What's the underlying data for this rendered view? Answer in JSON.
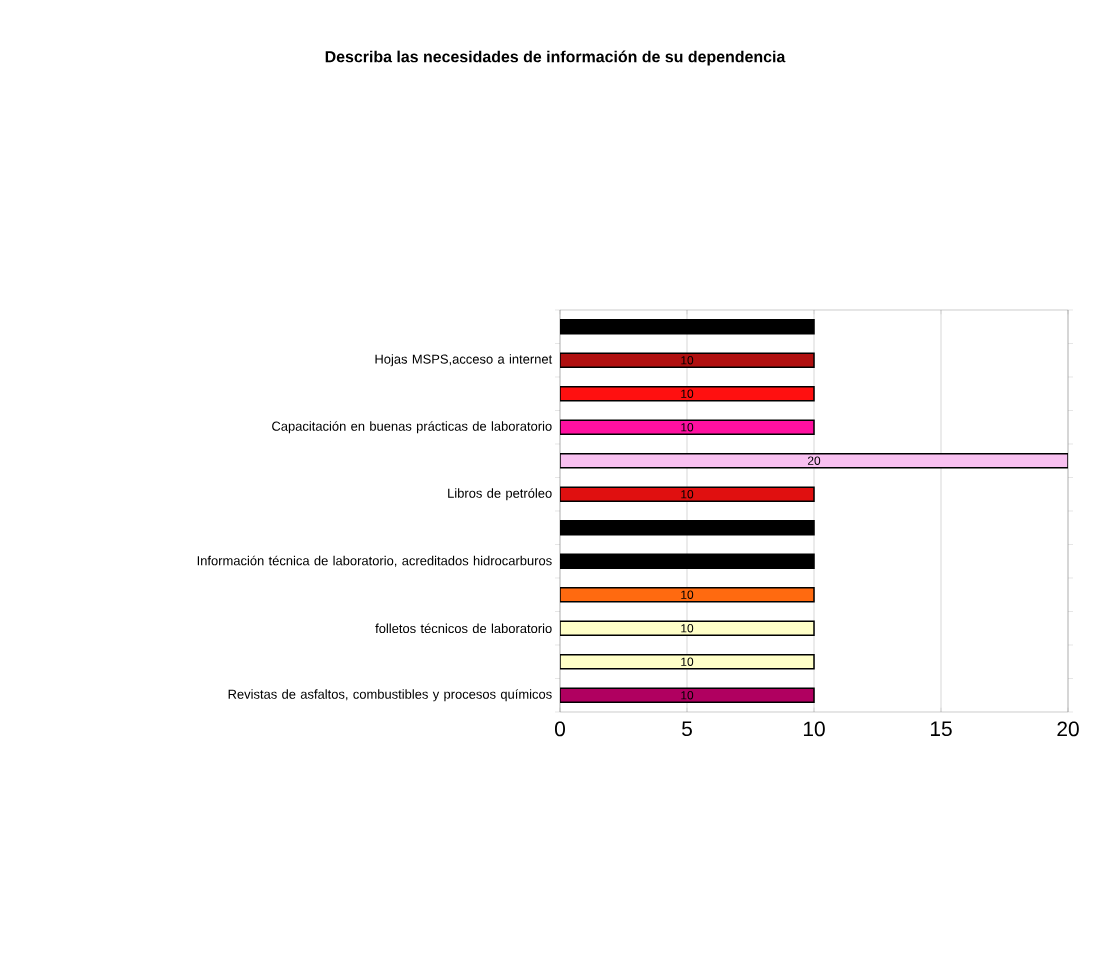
{
  "chart_data": {
    "type": "bar",
    "orientation": "horizontal",
    "title": "Describa  las necesidades de información de su dependencia",
    "categories": [
      null,
      "Hojas MSPS,acceso  a internet",
      null,
      "Capacitación en buenas prácticas  de laboratorio",
      null,
      "Libros de petróleo",
      null,
      "Información técnica de laboratorio, acreditados hidrocarburos",
      null,
      "folletos técnicos de laboratorio",
      null,
      "Revistas de asfaltos, combustibles y procesos químicos"
    ],
    "values": [
      10,
      10,
      10,
      10,
      20,
      10,
      10,
      10,
      10,
      10,
      10,
      10
    ],
    "colors": [
      "#000000",
      "#b01010",
      "#ff1010",
      "#ff10a0",
      "#f8c0f0",
      "#e01010",
      "#000000",
      "#000000",
      "#ff6a10",
      "#ffffc8",
      "#ffffc8",
      "#b00060"
    ],
    "value_labels": [
      null,
      "10",
      "10",
      "10",
      "20",
      "10",
      null,
      null,
      "10",
      "10",
      "10",
      "10"
    ],
    "xlim": [
      0,
      20
    ],
    "xticks": [
      0,
      5,
      10,
      15,
      20
    ],
    "grid": "x"
  }
}
